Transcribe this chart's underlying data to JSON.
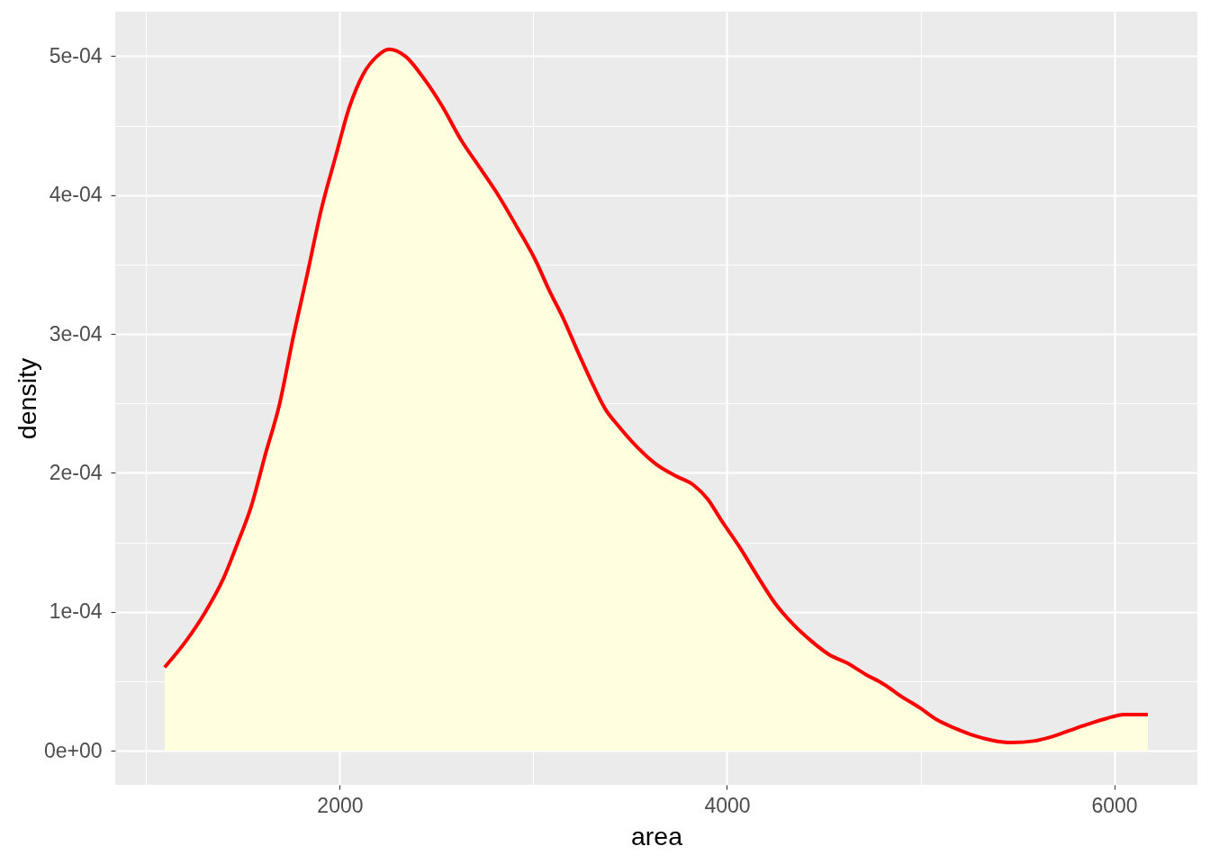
{
  "chart_data": {
    "type": "area",
    "xlabel": "area",
    "ylabel": "density",
    "x": [
      1095,
      1206,
      1302,
      1399,
      1471,
      1543,
      1615,
      1688,
      1760,
      1832,
      1905,
      1977,
      2049,
      2121,
      2193,
      2254,
      2338,
      2434,
      2529,
      2625,
      2722,
      2818,
      2915,
      3011,
      3083,
      3155,
      3227,
      3299,
      3371,
      3444,
      3540,
      3636,
      3732,
      3829,
      3901,
      3970,
      4063,
      4156,
      4249,
      4342,
      4435,
      4529,
      4622,
      4715,
      4808,
      4901,
      4994,
      5087,
      5180,
      5274,
      5367,
      5475,
      5584,
      5677,
      5770,
      5864,
      5957,
      6050,
      6174
    ],
    "series": [
      {
        "color": "#ffffe0",
        "values": [
          6e-05,
          7.9e-05,
          9.9e-05,
          0.000124,
          0.000149,
          0.000176,
          0.000213,
          0.000249,
          0.000298,
          0.000343,
          0.00039,
          0.000427,
          0.000463,
          0.000487,
          0.0005,
          0.000505,
          0.0005,
          0.000484,
          0.000464,
          0.00044,
          0.00042,
          0.0004,
          0.000377,
          0.000353,
          0.000331,
          0.000311,
          0.000288,
          0.000266,
          0.000246,
          0.000233,
          0.000218,
          0.000206,
          0.000198,
          0.000191,
          0.000181,
          0.000166,
          0.000147,
          0.000126,
          0.000106,
          9.1e-05,
          7.9e-05,
          6.9e-05,
          6.3e-05,
          5.5e-05,
          4.8e-05,
          3.9e-05,
          3.1e-05,
          2.2e-05,
          1.6e-05,
          1.1e-05,
          7.5e-06,
          5.8e-06,
          6.9e-06,
          1e-05,
          1.45e-05,
          1.9e-05,
          2.3e-05,
          2.6e-05,
          2.6e-05
        ]
      }
    ],
    "xlim": [
      840,
      6430
    ],
    "ylim": [
      -2.46e-05,
      0.000532
    ],
    "xticks": [
      {
        "value": 1000,
        "label": null
      },
      2000,
      {
        "value": 3000,
        "label": null
      },
      4000,
      {
        "value": 5000,
        "label": null
      },
      6000
    ],
    "yticks": [
      {
        "value": 0,
        "label": "0e+00"
      },
      {
        "value": 5e-05,
        "label": null
      },
      {
        "value": 0.0001,
        "label": "1e-04"
      },
      {
        "value": 0.00015,
        "label": null
      },
      {
        "value": 0.0002,
        "label": "2e-04"
      },
      {
        "value": 0.00025,
        "label": null
      },
      {
        "value": 0.0003,
        "label": "3e-04"
      },
      {
        "value": 0.00035,
        "label": null
      },
      {
        "value": 0.0004,
        "label": "4e-04"
      },
      {
        "value": 0.00045,
        "label": null
      },
      {
        "value": 0.0005,
        "label": "5e-04"
      }
    ],
    "grid": true,
    "line_style": "solid"
  }
}
